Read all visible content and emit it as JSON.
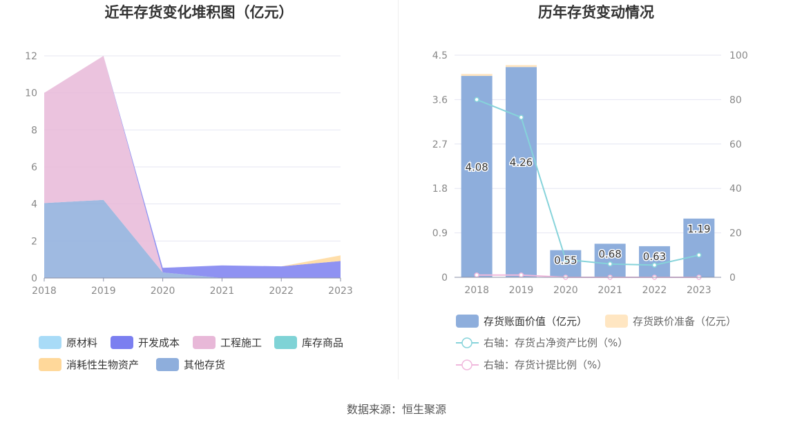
{
  "left_chart": {
    "title": "近年存货变化堆积图（亿元）",
    "chart_data": {
      "type": "area",
      "stacked": true,
      "categories": [
        "2018",
        "2019",
        "2020",
        "2021",
        "2022",
        "2023"
      ],
      "ylim": [
        0,
        12
      ],
      "yticks": [
        "0",
        "2",
        "4",
        "6",
        "8",
        "10",
        "12"
      ],
      "grid": true,
      "legend_position": "bottom",
      "series": [
        {
          "name": "原材料",
          "color": "#a8dbf7",
          "values": [
            0,
            0,
            0,
            0,
            0,
            0
          ]
        },
        {
          "name": "开发成本",
          "color": "#7b7ff0",
          "values": [
            0,
            0,
            0,
            0,
            0,
            0
          ]
        },
        {
          "name": "工程施工",
          "color": "#e8b8d8",
          "values": [
            0,
            0,
            0,
            0,
            0,
            0
          ]
        },
        {
          "name": "库存商品",
          "color": "#7fd3d6",
          "values": [
            0,
            0,
            0,
            0,
            0,
            0
          ]
        },
        {
          "name": "消耗性生物资产",
          "color": "#ffd89a",
          "values": [
            0,
            0,
            0,
            0,
            0,
            0
          ]
        },
        {
          "name": "其他存货",
          "color": "#8eaedc",
          "values": [
            0,
            0,
            0,
            0,
            0,
            0
          ]
        }
      ],
      "area_values": {
        "其他存货": [
          4.05,
          4.22,
          0.3,
          0.0,
          0.0,
          0.0
        ],
        "工程施工": [
          5.95,
          7.78,
          0.0,
          0.0,
          0.0,
          0.0
        ],
        "开发成本": [
          0.0,
          0.0,
          0.25,
          0.68,
          0.63,
          0.92
        ],
        "消耗性生物资产": [
          0.0,
          0.0,
          0.0,
          0.0,
          0.0,
          0.3
        ]
      }
    }
  },
  "right_chart": {
    "title": "历年存货变动情况",
    "chart_data": {
      "type": "bar",
      "categories": [
        "2018",
        "2019",
        "2020",
        "2021",
        "2022",
        "2023"
      ],
      "ylim_left": [
        0,
        4.5
      ],
      "yticks_left": [
        "0",
        "0.9",
        "1.8",
        "2.7",
        "3.6",
        "4.5"
      ],
      "ylim_right": [
        0,
        100
      ],
      "yticks_right": [
        "0",
        "20",
        "40",
        "60",
        "80",
        "100"
      ],
      "grid": true,
      "legend_position": "bottom",
      "series": [
        {
          "name": "存货账面价值（亿元）",
          "kind": "bar",
          "axis": "left",
          "color": "#8eaedc",
          "values": [
            4.08,
            4.26,
            0.55,
            0.68,
            0.63,
            1.19
          ],
          "labels": [
            "4.08",
            "4.26",
            "0.55",
            "0.68",
            "0.63",
            "1.19"
          ]
        },
        {
          "name": "存货跌价准备（亿元）",
          "kind": "bar",
          "axis": "left",
          "color": "#ffe6c2",
          "values": [
            0.04,
            0.04,
            0.0,
            0.0,
            0.0,
            0.0
          ]
        },
        {
          "name": "右轴：存货占净资产比例（%）",
          "kind": "line",
          "axis": "right",
          "color": "#86d3da",
          "values": [
            80,
            72,
            8,
            6,
            5.5,
            10
          ]
        },
        {
          "name": "右轴：存货计提比例（%）",
          "kind": "line",
          "axis": "right",
          "color": "#f0b8dc",
          "values": [
            1,
            1,
            0,
            0,
            0,
            0
          ]
        }
      ]
    }
  },
  "source": "数据来源：恒生聚源"
}
